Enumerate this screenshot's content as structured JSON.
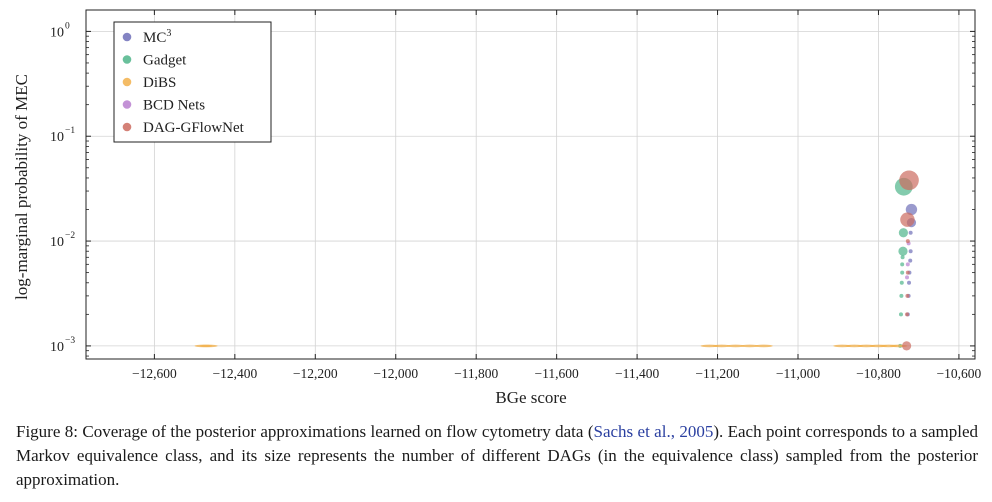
{
  "chart_data": {
    "type": "scatter",
    "xlabel": "BGe score",
    "ylabel": "log-marginal probability of MEC",
    "x_scale": "linear",
    "y_scale": "log",
    "xlim": [
      -12770,
      -10560
    ],
    "ylim": [
      0.00075,
      1.6
    ],
    "x_ticks": [
      -12600,
      -12400,
      -12200,
      -12000,
      -11800,
      -11600,
      -11400,
      -11200,
      -11000,
      -10800,
      -10600
    ],
    "x_tick_labels": [
      "−12,600",
      "−12,400",
      "−12,200",
      "−12,000",
      "−11,800",
      "−11,600",
      "−11,400",
      "−11,200",
      "−11,000",
      "−10,800",
      "−10,600"
    ],
    "y_ticks": [
      0.001,
      0.01,
      0.1,
      1
    ],
    "y_tick_labels": [
      {
        "base": "10",
        "exp": "−3"
      },
      {
        "base": "10",
        "exp": "−2"
      },
      {
        "base": "10",
        "exp": "−1"
      },
      {
        "base": "10",
        "exp": "0"
      }
    ],
    "grid": true,
    "legend_position": "top-left",
    "series": [
      {
        "name": "MC",
        "name_sup": "3",
        "color": "#6f6fb8",
        "points": [
          {
            "x": -10718,
            "y": 0.02,
            "n": 3
          },
          {
            "x": -10718,
            "y": 0.015,
            "n": 2
          },
          {
            "x": -10720,
            "y": 0.012,
            "n": 1
          },
          {
            "x": -10720,
            "y": 0.008,
            "n": 1
          },
          {
            "x": -10721,
            "y": 0.0065,
            "n": 1
          },
          {
            "x": -10723,
            "y": 0.005,
            "n": 1
          },
          {
            "x": -10724,
            "y": 0.004,
            "n": 1
          },
          {
            "x": -10725,
            "y": 0.003,
            "n": 1
          },
          {
            "x": -10727,
            "y": 0.002,
            "n": 1
          }
        ]
      },
      {
        "name": "Gadget",
        "name_sup": "",
        "color": "#4fb58a",
        "points": [
          {
            "x": -10737,
            "y": 0.033,
            "n": 8
          },
          {
            "x": -10738,
            "y": 0.012,
            "n": 2
          },
          {
            "x": -10739,
            "y": 0.008,
            "n": 2
          },
          {
            "x": -10740,
            "y": 0.007,
            "n": 1
          },
          {
            "x": -10741,
            "y": 0.006,
            "n": 1
          },
          {
            "x": -10741,
            "y": 0.005,
            "n": 1
          },
          {
            "x": -10742,
            "y": 0.004,
            "n": 1
          },
          {
            "x": -10743,
            "y": 0.003,
            "n": 1
          },
          {
            "x": -10744,
            "y": 0.002,
            "n": 1
          },
          {
            "x": -10746,
            "y": 0.001,
            "n": 1
          }
        ]
      },
      {
        "name": "DiBS",
        "name_sup": "",
        "color": "#f2b04b",
        "points": [
          {
            "x": -12478,
            "y": 0.001,
            "n": 1
          },
          {
            "x": -12465,
            "y": 0.001,
            "n": 1
          },
          {
            "x": -11220,
            "y": 0.001,
            "n": 1
          },
          {
            "x": -11190,
            "y": 0.001,
            "n": 1
          },
          {
            "x": -11155,
            "y": 0.001,
            "n": 1
          },
          {
            "x": -11120,
            "y": 0.001,
            "n": 1
          },
          {
            "x": -11085,
            "y": 0.001,
            "n": 1
          },
          {
            "x": -10890,
            "y": 0.001,
            "n": 1
          },
          {
            "x": -10860,
            "y": 0.001,
            "n": 1
          },
          {
            "x": -10830,
            "y": 0.001,
            "n": 1
          },
          {
            "x": -10800,
            "y": 0.001,
            "n": 1
          },
          {
            "x": -10775,
            "y": 0.001,
            "n": 1
          },
          {
            "x": -10750,
            "y": 0.001,
            "n": 1
          }
        ]
      },
      {
        "name": "BCD Nets",
        "name_sup": "",
        "color": "#b87fcf",
        "points": [
          {
            "x": -10725,
            "y": 0.0095,
            "n": 1
          },
          {
            "x": -10727,
            "y": 0.006,
            "n": 1
          },
          {
            "x": -10729,
            "y": 0.0045,
            "n": 1
          }
        ]
      },
      {
        "name": "DAG-GFlowNet",
        "name_sup": "",
        "color": "#cc6b5f",
        "points": [
          {
            "x": -10724,
            "y": 0.038,
            "n": 10
          },
          {
            "x": -10728,
            "y": 0.016,
            "n": 5
          },
          {
            "x": -10727,
            "y": 0.01,
            "n": 1
          },
          {
            "x": -10727,
            "y": 0.005,
            "n": 1
          },
          {
            "x": -10728,
            "y": 0.003,
            "n": 1
          },
          {
            "x": -10729,
            "y": 0.002,
            "n": 1
          },
          {
            "x": -10730,
            "y": 0.001,
            "n": 2
          }
        ]
      }
    ]
  },
  "caption": {
    "before": "Figure 8: Coverage of the posterior approximations learned on flow cytometry data (",
    "citation": "Sachs et al., 2005",
    "after": "). Each point corresponds to a sampled Markov equivalence class, and its size represents the number of different DAGs (in the equivalence class) sampled from the posterior approximation."
  }
}
